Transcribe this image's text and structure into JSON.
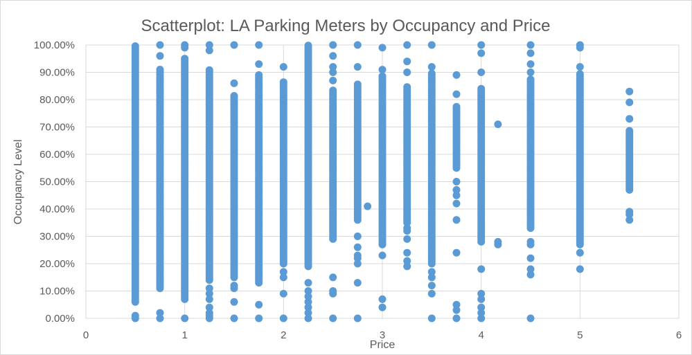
{
  "chart_data": {
    "type": "scatter",
    "title": "Scatterplot: LA Parking Meters by Occupancy and Price",
    "xlabel": "Price",
    "ylabel": "Occupancy Level",
    "xlim": [
      0,
      6
    ],
    "ylim": [
      0,
      1
    ],
    "x_ticks": [
      0,
      1,
      2,
      3,
      4,
      5,
      6
    ],
    "y_ticks": [
      0,
      0.1,
      0.2,
      0.3,
      0.4,
      0.5,
      0.6,
      0.7,
      0.8,
      0.9,
      1.0
    ],
    "x_tick_labels": [
      "0",
      "1",
      "2",
      "3",
      "4",
      "5",
      "6"
    ],
    "y_tick_labels": [
      "0.00%",
      "10.00%",
      "20.00%",
      "30.00%",
      "40.00%",
      "50.00%",
      "60.00%",
      "70.00%",
      "80.00%",
      "90.00%",
      "100.00%"
    ],
    "grid": {
      "x": true,
      "y": true
    },
    "legend": "none",
    "marker_color": "#5b9bd5",
    "columns": [
      {
        "x": 0.5,
        "ranges": [
          [
            0.06,
            1.0
          ]
        ],
        "extra": [
          0,
          0.01
        ]
      },
      {
        "x": 0.75,
        "ranges": [
          [
            0.11,
            0.91
          ]
        ],
        "extra": [
          0,
          0.02,
          0.96,
          1.0
        ]
      },
      {
        "x": 1.0,
        "ranges": [
          [
            0.07,
            0.95
          ]
        ],
        "extra": [
          0,
          1.0,
          0.99
        ]
      },
      {
        "x": 1.25,
        "ranges": [
          [
            0.14,
            0.91
          ]
        ],
        "extra": [
          0,
          0.01,
          0.02,
          0.04,
          0.07,
          0.09,
          0.11,
          0.98,
          1.0
        ]
      },
      {
        "x": 1.5,
        "ranges": [
          [
            0.15,
            0.82
          ]
        ],
        "extra": [
          0,
          0.06,
          0.11,
          0.12,
          0.86,
          1.0
        ]
      },
      {
        "x": 1.75,
        "ranges": [
          [
            0.13,
            0.89
          ]
        ],
        "extra": [
          0,
          0.05,
          0.93,
          1.0
        ]
      },
      {
        "x": 2.0,
        "ranges": [
          [
            0.2,
            0.87
          ]
        ],
        "extra": [
          0,
          0.09,
          0.15,
          0.17,
          0.92
        ]
      },
      {
        "x": 2.25,
        "ranges": [
          [
            0.19,
            1.0
          ]
        ],
        "extra": [
          0,
          0.02,
          0.04,
          0.06,
          0.08,
          0.1,
          0.13
        ]
      },
      {
        "x": 2.5,
        "ranges": [
          [
            0.29,
            0.84
          ]
        ],
        "extra": [
          0,
          0.09,
          0.1,
          0.15,
          0.87,
          0.9,
          0.92,
          0.96,
          1.0
        ]
      },
      {
        "x": 2.75,
        "ranges": [
          [
            0.36,
            0.86
          ]
        ],
        "extra": [
          0,
          0.13,
          0.2,
          0.22,
          0.23,
          0.26,
          0.3,
          0.92,
          1.0
        ]
      },
      {
        "x": 2.85,
        "ranges": [],
        "extra": [
          0.41
        ]
      },
      {
        "x": 3.0,
        "ranges": [
          [
            0.27,
            0.89
          ]
        ],
        "extra": [
          0.04,
          0.07,
          0.23,
          0.91,
          0.99
        ]
      },
      {
        "x": 3.25,
        "ranges": [
          [
            0.35,
            0.85
          ]
        ],
        "extra": [
          0.19,
          0.21,
          0.24,
          0.29,
          0.32,
          0.33,
          0.9,
          0.94,
          1.0
        ]
      },
      {
        "x": 3.5,
        "ranges": [
          [
            0.2,
            0.9
          ]
        ],
        "extra": [
          0,
          0.09,
          0.12,
          0.15,
          0.17,
          0.92,
          1.0
        ]
      },
      {
        "x": 3.75,
        "ranges": [
          [
            0.55,
            0.78
          ]
        ],
        "extra": [
          0,
          0.03,
          0.05,
          0.24,
          0.36,
          0.42,
          0.45,
          0.47,
          0.5,
          0.82,
          0.89
        ]
      },
      {
        "x": 4.0,
        "ranges": [
          [
            0.28,
            0.84
          ]
        ],
        "extra": [
          0,
          0.02,
          0.04,
          0.07,
          0.09,
          0.18,
          0.9,
          0.97,
          1.0
        ]
      },
      {
        "x": 4.17,
        "ranges": [],
        "extra": [
          0.27,
          0.28,
          0.71
        ]
      },
      {
        "x": 4.5,
        "ranges": [
          [
            0.33,
            0.88
          ]
        ],
        "extra": [
          0,
          0.16,
          0.18,
          0.22,
          0.27,
          0.28,
          0.9,
          0.93,
          0.97,
          1.0
        ]
      },
      {
        "x": 5.0,
        "ranges": [
          [
            0.27,
            0.9
          ]
        ],
        "extra": [
          0.18,
          0.24,
          0.92,
          0.99,
          1.0
        ]
      },
      {
        "x": 5.5,
        "ranges": [
          [
            0.47,
            0.69
          ]
        ],
        "extra": [
          0.36,
          0.38,
          0.39,
          0.73,
          0.79,
          0.83
        ]
      }
    ]
  }
}
